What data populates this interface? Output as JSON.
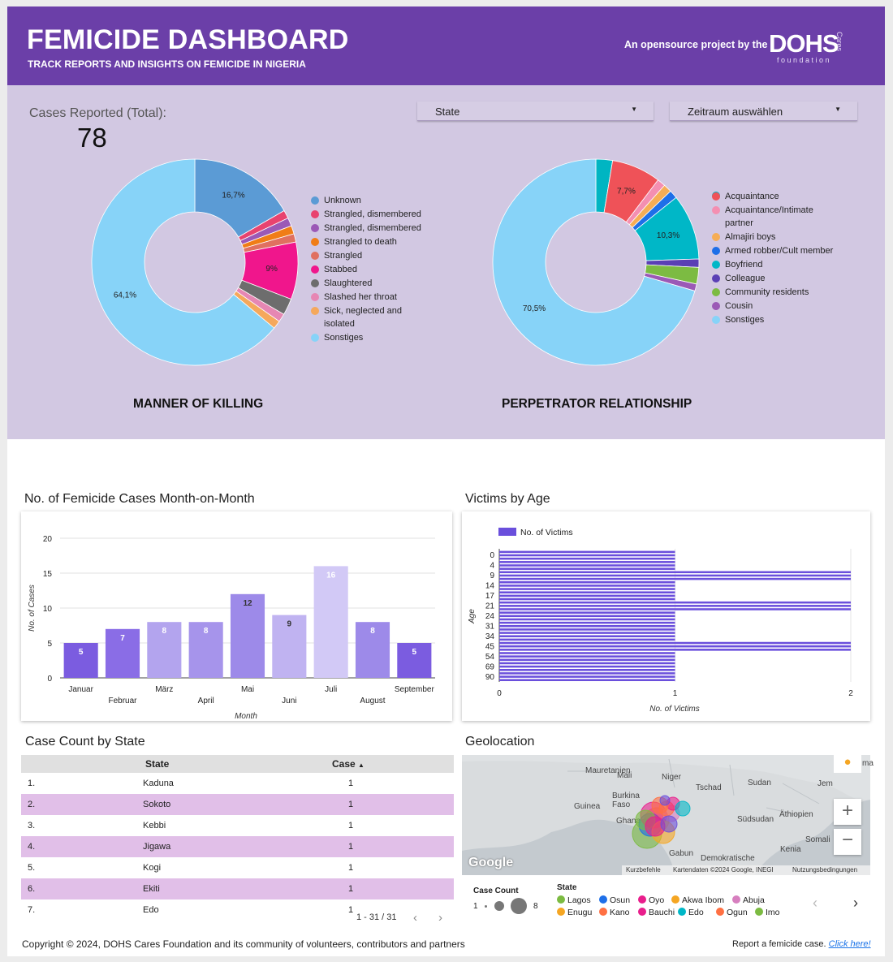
{
  "header": {
    "title": "FEMICIDE DASHBOARD",
    "subtitle": "TRACK REPORTS AND INSIGHTS ON FEMICIDE IN NIGERIA",
    "credit": "An opensource project by the",
    "logo_text": "DOHS",
    "logo_cares": "Cares",
    "logo_foundation": "foundation"
  },
  "summary": {
    "label": "Cases Reported (Total):",
    "value": "78"
  },
  "filters": {
    "state": "State",
    "period": "Zeitraum auswählen"
  },
  "colors": {
    "header": "#6b3fa8",
    "panel": "#d2c8e2",
    "bar": "#7b5ce0",
    "row_alt": "#e1bfe8"
  },
  "chart_data": [
    {
      "type": "pie",
      "id": "manner",
      "title": "MANNER OF KILLING",
      "labels": [
        "Unknown",
        "Strangled, dismembered",
        "Strangled, dismembered",
        "Strangled to death",
        "Strangled",
        "Stabbed",
        "Slaughtered",
        "Slashed her throat",
        "Sick, neglected and isolated",
        "Sonstiges"
      ],
      "values": [
        16.7,
        1.3,
        1.3,
        1.3,
        1.3,
        9.0,
        2.6,
        1.3,
        1.3,
        64.1
      ],
      "slice_labels": [
        "16,7%",
        "",
        "",
        "",
        "",
        "9%",
        "",
        "",
        "",
        "64,1%"
      ],
      "colors": [
        "#5b9bd5",
        "#e8436f",
        "#9b59b6",
        "#f07d17",
        "#e07060",
        "#f0168c",
        "#6d6d6d",
        "#e687b3",
        "#f5a85c",
        "#87d3f8"
      ]
    },
    {
      "type": "pie",
      "id": "relationship",
      "title": "PERPETRATOR RELATIONSHIP",
      "labels": [
        "",
        "Acquaintance",
        "Acquaintance/Intimate partner",
        "Almajiri boys",
        "Armed robber/Cult member",
        "Boyfriend",
        "Colleague",
        "Community residents",
        "Cousin",
        "Sonstiges"
      ],
      "values": [
        2.6,
        7.7,
        1.3,
        1.3,
        1.3,
        10.3,
        1.3,
        2.6,
        1.1,
        70.5
      ],
      "slice_labels": [
        "",
        "7,7%",
        "",
        "",
        "",
        "10,3%",
        "",
        "",
        "",
        "70,5%"
      ],
      "colors": [
        "#00b5c2",
        "#ef5258",
        "#f48fb1",
        "#f6ad55",
        "#1e6fe8",
        "#00b7c7",
        "#5a3fb5",
        "#7cbb42",
        "#9b59b6",
        "#87d3f8"
      ]
    },
    {
      "type": "bar",
      "id": "monthly",
      "title": "No. of Femicide Cases Month-on-Month",
      "categories": [
        "Januar",
        "Februar",
        "März",
        "April",
        "Mai",
        "Juni",
        "Juli",
        "August",
        "September"
      ],
      "values": [
        5,
        7,
        8,
        8,
        12,
        9,
        16,
        8,
        5
      ],
      "xlabel": "Month",
      "ylabel": "No. of Cases",
      "ylim": [
        0,
        20
      ],
      "yticks": [
        0,
        5,
        10,
        15,
        20
      ]
    },
    {
      "type": "bar",
      "orientation": "horizontal",
      "id": "age",
      "title": "Victims by Age",
      "series_name": "No. of Victims",
      "categories": [
        "0",
        "4",
        "9",
        "14",
        "17",
        "21",
        "24",
        "31",
        "34",
        "45",
        "54",
        "69",
        "90"
      ],
      "values": [
        1,
        1,
        2,
        1,
        1,
        2,
        1,
        1,
        1,
        2,
        1,
        1,
        1
      ],
      "ylabel": "Age",
      "xlabel": "No. of Victims",
      "xlim": [
        0,
        2
      ],
      "xticks": [
        0,
        1,
        2
      ]
    }
  ],
  "state_table": {
    "title": "Case Count by State",
    "columns": [
      "State",
      "Case"
    ],
    "sort_indicator": "▲",
    "rows": [
      {
        "n": "1.",
        "state": "Kaduna",
        "case": "1"
      },
      {
        "n": "2.",
        "state": "Sokoto",
        "case": "1"
      },
      {
        "n": "3.",
        "state": "Kebbi",
        "case": "1"
      },
      {
        "n": "4.",
        "state": "Jigawa",
        "case": "1"
      },
      {
        "n": "5.",
        "state": "Kogi",
        "case": "1"
      },
      {
        "n": "6.",
        "state": "Ekiti",
        "case": "1"
      },
      {
        "n": "7.",
        "state": "Edo",
        "case": "1"
      }
    ],
    "pager": "1 - 31 / 31"
  },
  "geo": {
    "title": "Geolocation",
    "countries": [
      "Mauretanien",
      "Mali",
      "Niger",
      "Tschad",
      "Sudan",
      "Jem",
      "Burkina Faso",
      "Guinea",
      "Ghana",
      "Südsudan",
      "Äthiopien",
      "Somali",
      "Gabun",
      "Demokratische",
      "Kenia",
      "ma"
    ],
    "attribution": [
      "Kurzbefehle",
      "Kartendaten ©2024 Google, INEGI",
      "Nutzungsbedingungen"
    ],
    "google": "Google",
    "size_title": "Case Count",
    "size_min": "1",
    "size_max": "8",
    "state_title": "State",
    "states": [
      {
        "name": "Lagos",
        "color": "#7cbb42"
      },
      {
        "name": "Osun",
        "color": "#1e6fe8"
      },
      {
        "name": "Oyo",
        "color": "#e91e8c"
      },
      {
        "name": "Akwa Ibom",
        "color": "#f5a623"
      },
      {
        "name": "Abuja",
        "color": "#d77fbf"
      },
      {
        "name": "Enugu",
        "color": "#f5a623"
      },
      {
        "name": "Kano",
        "color": "#ff7043"
      },
      {
        "name": "Bauchi",
        "color": "#e91e8c"
      },
      {
        "name": "Edo",
        "color": "#00b7c7"
      },
      {
        "name": "Ogun",
        "color": "#ff7043"
      },
      {
        "name": "Imo",
        "color": "#7cbb42"
      }
    ]
  },
  "footer": {
    "copyright": "Copyright © 2024, DOHS Cares Foundation and its community of volunteers, contributors and partners",
    "report_text": "Report a femicide case.",
    "report_link": "Click here!"
  }
}
